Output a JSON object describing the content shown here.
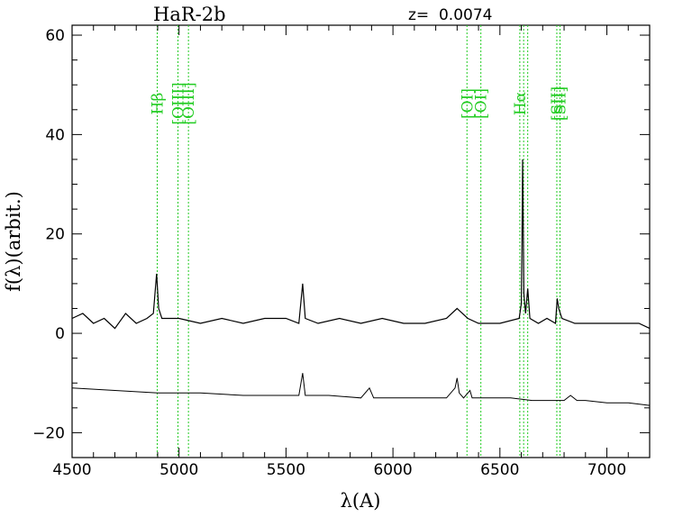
{
  "chart_data": {
    "type": "line",
    "title": "HaR-2b",
    "redshift_label": "z=  0.0074",
    "xlabel": "λ(A)",
    "ylabel": "f(λ)(arbit.)",
    "xlim": [
      4500,
      7200
    ],
    "ylim": [
      -25,
      62
    ],
    "x_ticks": [
      4500,
      5000,
      5500,
      6000,
      6500,
      7000
    ],
    "y_ticks": [
      -20,
      0,
      20,
      40,
      60
    ],
    "line_color": "#000000",
    "marker_color": "#22cc22",
    "emission_lines": [
      {
        "label": "Hβ",
        "wavelengths": [
          4898
        ]
      },
      {
        "label": "[OIII]",
        "wavelengths": [
          4995,
          5044
        ]
      },
      {
        "label": "[OI]",
        "wavelengths": [
          6346,
          6411
        ]
      },
      {
        "label": "Hα",
        "wavelengths": [
          6593,
          6611,
          6630
        ]
      },
      {
        "label": "[SII]",
        "wavelengths": [
          6766,
          6781
        ]
      }
    ],
    "series": [
      {
        "x": [
          4500,
          4550,
          4600,
          4650,
          4700,
          4750,
          4800,
          4850,
          4880,
          4895,
          4905,
          4920,
          5000,
          5100,
          5200,
          5300,
          5400,
          5500,
          5560,
          5578,
          5590,
          5650,
          5750,
          5850,
          5950,
          6050,
          6150,
          6250,
          6300,
          6350,
          6400,
          6500,
          6590,
          6600,
          6603,
          6606,
          6609,
          6612,
          6620,
          6630,
          6640,
          6680,
          6720,
          6760,
          6768,
          6775,
          6790,
          6850,
          6950,
          7050,
          7150,
          7200
        ],
        "y": [
          3,
          4,
          2,
          3,
          1,
          4,
          2,
          3,
          4,
          12,
          5,
          3,
          3,
          2,
          3,
          2,
          3,
          3,
          2,
          10,
          3,
          2,
          3,
          2,
          3,
          2,
          2,
          3,
          5,
          3,
          2,
          2,
          3,
          6,
          18,
          35,
          22,
          8,
          4,
          9,
          3,
          2,
          3,
          2,
          7,
          5,
          3,
          2,
          2,
          2,
          2,
          1
        ]
      },
      {
        "x": [
          4500,
          4700,
          4900,
          5100,
          5300,
          5500,
          5560,
          5578,
          5590,
          5700,
          5850,
          5890,
          5910,
          6000,
          6150,
          6250,
          6290,
          6300,
          6310,
          6330,
          6360,
          6370,
          6450,
          6550,
          6650,
          6750,
          6800,
          6830,
          6860,
          6900,
          7000,
          7100,
          7200
        ],
        "y": [
          -11,
          -11.5,
          -12,
          -12,
          -12.5,
          -12.5,
          -12.5,
          -8,
          -12.5,
          -12.5,
          -13,
          -11,
          -13,
          -13,
          -13,
          -13,
          -11,
          -9,
          -12,
          -13,
          -11.5,
          -13,
          -13,
          -13,
          -13.5,
          -13.5,
          -13.5,
          -12.5,
          -13.5,
          -13.5,
          -14,
          -14,
          -14.5
        ]
      }
    ]
  }
}
